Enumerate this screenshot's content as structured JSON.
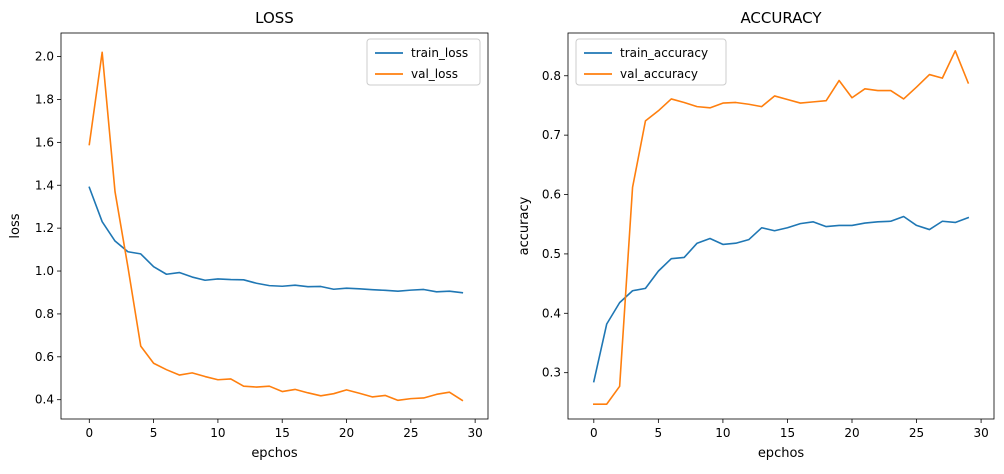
{
  "colors": {
    "train": "#1f77b4",
    "val": "#ff7f0e"
  },
  "chart_data": [
    {
      "type": "line",
      "title": "LOSS",
      "xlabel": "epchos",
      "ylabel": "loss",
      "xlim": [
        -2.2,
        31.0
      ],
      "ylim": [
        0.31,
        2.11
      ],
      "xticks": [
        0,
        5,
        10,
        15,
        20,
        25,
        30
      ],
      "yticks": [
        0.4,
        0.6,
        0.8,
        1.0,
        1.2,
        1.4,
        1.6,
        1.8,
        2.0
      ],
      "ytick_decimals": 1,
      "legend": "top-right",
      "x": [
        0,
        1,
        2,
        3,
        4,
        5,
        6,
        7,
        8,
        9,
        10,
        11,
        12,
        13,
        14,
        15,
        16,
        17,
        18,
        19,
        20,
        21,
        22,
        23,
        24,
        25,
        26,
        27,
        28,
        29
      ],
      "series": [
        {
          "name": "train_loss",
          "color": "#1f77b4",
          "values": [
            1.39,
            1.23,
            1.14,
            1.09,
            1.08,
            1.02,
            0.985,
            0.993,
            0.972,
            0.957,
            0.963,
            0.96,
            0.959,
            0.943,
            0.932,
            0.929,
            0.934,
            0.927,
            0.928,
            0.915,
            0.92,
            0.917,
            0.913,
            0.91,
            0.906,
            0.911,
            0.914,
            0.903,
            0.906,
            0.899
          ]
        },
        {
          "name": "val_loss",
          "color": "#ff7f0e",
          "values": [
            1.59,
            2.02,
            1.37,
            1.02,
            0.65,
            0.57,
            0.54,
            0.515,
            0.525,
            0.508,
            0.493,
            0.497,
            0.463,
            0.459,
            0.463,
            0.438,
            0.448,
            0.432,
            0.418,
            0.428,
            0.446,
            0.43,
            0.413,
            0.42,
            0.397,
            0.405,
            0.408,
            0.425,
            0.435,
            0.397
          ]
        }
      ]
    },
    {
      "type": "line",
      "title": "ACCURACY",
      "xlabel": "epchos",
      "ylabel": "accuracy",
      "xlim": [
        -2.0,
        31.0
      ],
      "ylim": [
        0.222,
        0.872
      ],
      "xticks": [
        0,
        5,
        10,
        15,
        20,
        25,
        30
      ],
      "yticks": [
        0.3,
        0.4,
        0.5,
        0.6,
        0.7,
        0.8
      ],
      "ytick_decimals": 1,
      "legend": "top-left",
      "x": [
        0,
        1,
        2,
        3,
        4,
        5,
        6,
        7,
        8,
        9,
        10,
        11,
        12,
        13,
        14,
        15,
        16,
        17,
        18,
        19,
        20,
        21,
        22,
        23,
        24,
        25,
        26,
        27,
        28,
        29
      ],
      "series": [
        {
          "name": "train_accuracy",
          "color": "#1f77b4",
          "values": [
            0.285,
            0.382,
            0.418,
            0.438,
            0.442,
            0.471,
            0.492,
            0.494,
            0.518,
            0.526,
            0.516,
            0.518,
            0.524,
            0.544,
            0.539,
            0.544,
            0.551,
            0.554,
            0.546,
            0.548,
            0.548,
            0.552,
            0.554,
            0.555,
            0.563,
            0.548,
            0.541,
            0.555,
            0.553,
            0.561
          ]
        },
        {
          "name": "val_accuracy",
          "color": "#ff7f0e",
          "values": [
            0.247,
            0.247,
            0.277,
            0.612,
            0.724,
            0.741,
            0.761,
            0.755,
            0.748,
            0.746,
            0.754,
            0.755,
            0.752,
            0.748,
            0.766,
            0.76,
            0.754,
            0.756,
            0.758,
            0.792,
            0.763,
            0.778,
            0.775,
            0.775,
            0.761,
            0.781,
            0.802,
            0.796,
            0.842,
            0.788
          ]
        }
      ]
    }
  ]
}
